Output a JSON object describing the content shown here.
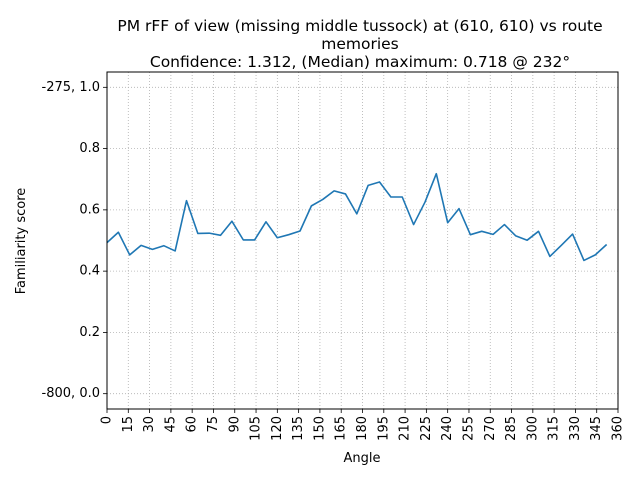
{
  "chart_data": {
    "type": "line",
    "title_lines": [
      "PM rFF of view (missing middle tussock) at (610, 610) vs route",
      "memories",
      "Confidence: 1.312, (Median) maximum: 0.718 @ 232°"
    ],
    "xlabel": "Angle",
    "ylabel": "Familiarity score",
    "xlim": [
      0,
      360
    ],
    "ylim": [
      -0.05,
      1.05
    ],
    "grid": true,
    "xticks": [
      0,
      15,
      30,
      45,
      60,
      75,
      90,
      105,
      120,
      135,
      150,
      165,
      180,
      195,
      210,
      225,
      240,
      255,
      270,
      285,
      300,
      315,
      330,
      345,
      360
    ],
    "yticks": [
      {
        "value": 0.0,
        "label": "-800, 0.0"
      },
      {
        "value": 0.2,
        "label": "0.2"
      },
      {
        "value": 0.4,
        "label": "0.4"
      },
      {
        "value": 0.6,
        "label": "0.6"
      },
      {
        "value": 0.8,
        "label": "0.8"
      },
      {
        "value": 1.0,
        "label": "-275, 1.0"
      }
    ],
    "series": [
      {
        "color": "#1f77b4",
        "x": [
          0,
          8,
          16,
          24,
          32,
          40,
          48,
          56,
          64,
          72,
          80,
          88,
          96,
          104,
          112,
          120,
          128,
          136,
          144,
          152,
          160,
          168,
          176,
          184,
          192,
          200,
          208,
          216,
          224,
          232,
          240,
          248,
          256,
          264,
          272,
          280,
          288,
          296,
          304,
          312,
          320,
          328,
          336,
          344,
          352
        ],
        "y": [
          0.493,
          0.527,
          0.453,
          0.484,
          0.471,
          0.483,
          0.466,
          0.63,
          0.523,
          0.524,
          0.517,
          0.563,
          0.502,
          0.502,
          0.561,
          0.509,
          0.519,
          0.531,
          0.613,
          0.634,
          0.662,
          0.652,
          0.587,
          0.68,
          0.691,
          0.642,
          0.642,
          0.552,
          0.625,
          0.718,
          0.558,
          0.604,
          0.519,
          0.53,
          0.52,
          0.552,
          0.515,
          0.501,
          0.53,
          0.448,
          0.484,
          0.521,
          0.435,
          0.453,
          0.487
        ]
      }
    ]
  }
}
